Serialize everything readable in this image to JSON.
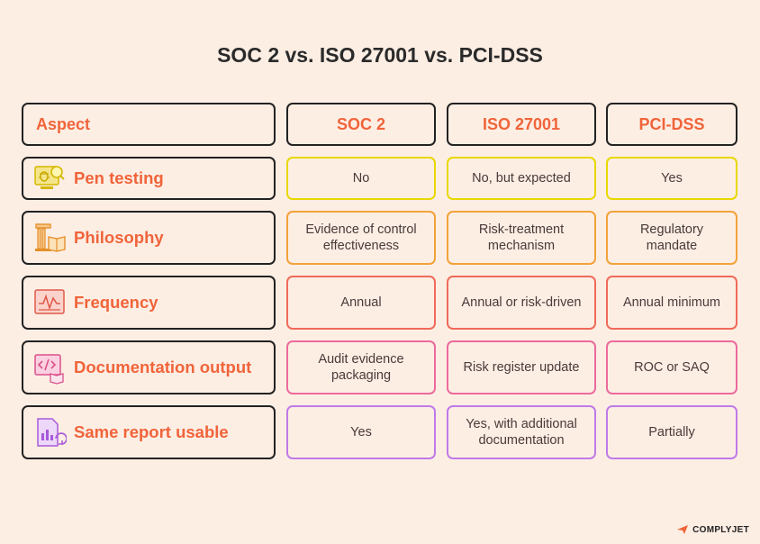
{
  "title": "SOC 2 vs. ISO 27001 vs. PCI-DSS",
  "headers": {
    "aspect": "Aspect",
    "col1": "SOC 2",
    "col2": "ISO 27001",
    "col3": "PCI-DSS"
  },
  "rows": [
    {
      "aspect": "Pen testing",
      "icon": "bug-magnifier-icon",
      "color": "#E8D800",
      "soc2": "No",
      "iso": "No, but expected",
      "pci": "Yes"
    },
    {
      "aspect": "Philosophy",
      "icon": "pillar-book-icon",
      "color": "#F2A23A",
      "soc2": "Evidence of control effectiveness",
      "iso": "Risk-treatment mechanism",
      "pci": "Regulatory mandate"
    },
    {
      "aspect": "Frequency",
      "icon": "monitor-graph-icon",
      "color": "#F06A5A",
      "soc2": "Annual",
      "iso": "Annual or risk-driven",
      "pci": "Annual minimum"
    },
    {
      "aspect": "Documentation output",
      "icon": "code-monitor-icon",
      "color": "#EC6A9C",
      "soc2": "Audit evidence packaging",
      "iso": "Risk register update",
      "pci": "ROC or SAQ"
    },
    {
      "aspect": "Same report usable",
      "icon": "report-refresh-icon",
      "color": "#C07AE8",
      "soc2": "Yes",
      "iso": "Yes, with additional documentation",
      "pci": "Partially"
    }
  ],
  "brand": "COMPLYJET"
}
